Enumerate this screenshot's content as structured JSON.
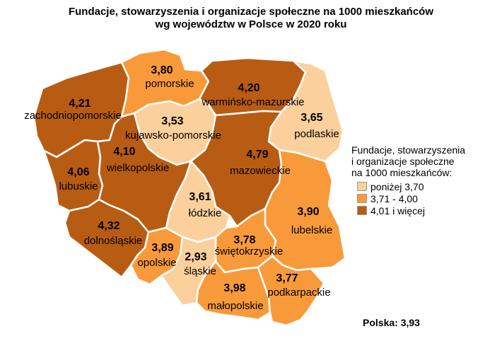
{
  "title": {
    "line1": "Fundacje, stowarzyszenia i organizacje społeczne na 1000 mieszkańców",
    "line2": "wg województw w Polsce w 2020 roku"
  },
  "colors": {
    "low": "#fcd09c",
    "mid": "#f99a3a",
    "high": "#b85c14"
  },
  "legend": {
    "title_lines": [
      "Fundacje, stowarzyszenia",
      "i organizacje społeczne",
      "na 1000 mieszkańców:"
    ],
    "items": [
      {
        "label": "poniżej 3,70",
        "class": "low"
      },
      {
        "label": "3,71 - 4,00",
        "class": "mid"
      },
      {
        "label": "4,01 i więcej",
        "class": "high"
      }
    ]
  },
  "regions": {
    "zachodniopomorskie": {
      "name": "zachodniopomorskie",
      "value": "4,21",
      "class": "high"
    },
    "pomorskie": {
      "name": "pomorskie",
      "value": "3,80",
      "class": "mid"
    },
    "warminsko": {
      "name": "warmińsko-mazurskie",
      "value": "4,20",
      "class": "high"
    },
    "podlaskie": {
      "name": "podlaskie",
      "value": "3,65",
      "class": "low"
    },
    "kujawsko": {
      "name": "kujawsko-pomorskie",
      "value": "3,53",
      "class": "low"
    },
    "lubuskie": {
      "name": "lubuskie",
      "value": "4,06",
      "class": "high"
    },
    "wielkopolskie": {
      "name": "wielkopolskie",
      "value": "4,10",
      "class": "high"
    },
    "mazowieckie": {
      "name": "mazowieckie",
      "value": "4,79",
      "class": "high"
    },
    "lodzkie": {
      "name": "łódzkie",
      "value": "3,61",
      "class": "low"
    },
    "lubelskie": {
      "name": "lubelskie",
      "value": "3,90",
      "class": "mid"
    },
    "dolnoslaskie": {
      "name": "dolnośląskie",
      "value": "4,32",
      "class": "high"
    },
    "opolskie": {
      "name": "opolskie",
      "value": "3,89",
      "class": "mid"
    },
    "slaskie": {
      "name": "śląskie",
      "value": "2,93",
      "class": "low"
    },
    "swietokrzyskie": {
      "name": "świętokrzyskie",
      "value": "3,78",
      "class": "mid"
    },
    "malopolskie": {
      "name": "małopolskie",
      "value": "3,98",
      "class": "mid"
    },
    "podkarpackie": {
      "name": "podkarpackie",
      "value": "3,77",
      "class": "mid"
    }
  },
  "total": "Polska: 3,93"
}
